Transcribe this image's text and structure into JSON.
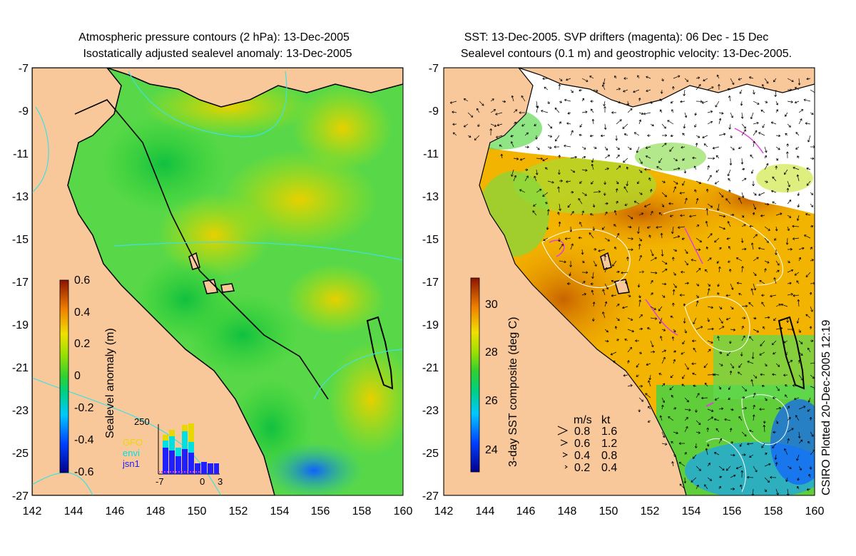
{
  "left_panel": {
    "title_line1": "Atmospheric pressure contours (2 hPa): 13-Dec-2005",
    "title_line2": "Isostatically adjusted sealevel anomaly: 13-Dec-2005",
    "colorbar_label": "Sealevel anomaly (m)",
    "colorbar_ticks": [
      "0.6",
      "0.4",
      "0.2",
      "0",
      "-0.2",
      "-0.4",
      "-0.6"
    ],
    "inset": {
      "ymax_label": "250",
      "legend": [
        {
          "label": "GFO",
          "color": "#e8d800"
        },
        {
          "label": "envi",
          "color": "#00e0e0"
        },
        {
          "label": "jsn1",
          "color": "#2020ff"
        }
      ],
      "x_ticks": [
        "-7",
        "0",
        "3"
      ]
    }
  },
  "right_panel": {
    "title_line1": "SST: 13-Dec-2005. SVP drifters (magenta): 06 Dec - 15 Dec",
    "title_line2": "Sealevel contours (0.1 m) and geostrophic velocity: 13-Dec-2005.",
    "colorbar_label": "3-day SST composite (deg C)",
    "colorbar_ticks": [
      "30",
      "28",
      "26",
      "24"
    ],
    "speed_legend": {
      "header_ms": "m/s",
      "header_kt": "kt",
      "rows": [
        {
          "ms": "0.8",
          "kt": "1.6"
        },
        {
          "ms": "0.6",
          "kt": "1.2"
        },
        {
          "ms": "0.4",
          "kt": "0.8"
        },
        {
          "ms": "0.2",
          "kt": "0.4"
        }
      ]
    },
    "credit": "CSIRO Plotted 20-Dec-2005 12:19"
  },
  "axes": {
    "lat_ticks": [
      "-7",
      "-9",
      "-11",
      "-13",
      "-15",
      "-17",
      "-19",
      "-21",
      "-23",
      "-25",
      "-27"
    ],
    "lon_ticks": [
      "142",
      "144",
      "146",
      "148",
      "150",
      "152",
      "154",
      "156",
      "158",
      "160"
    ]
  },
  "colors": {
    "land": "#f9c89a",
    "ocean_green": "#3cd23c",
    "ocean_yellow": "#d6e800",
    "sst_orange": "#f0a000",
    "drifter_magenta": "#e040e0",
    "pressure_cyan": "#40e0e0"
  }
}
